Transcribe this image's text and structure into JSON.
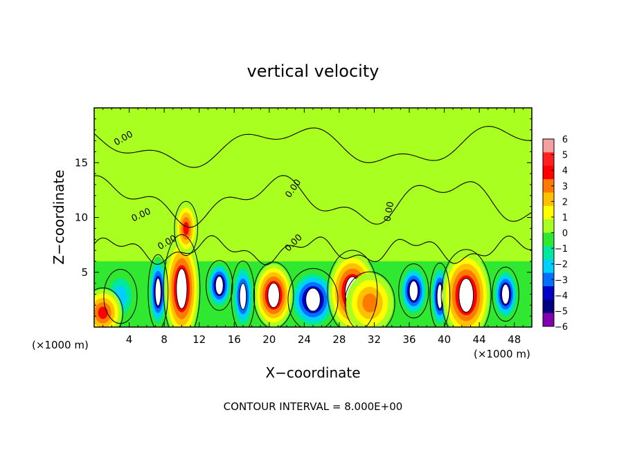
{
  "chart_data": {
    "type": "heatmap",
    "title": "vertical velocity",
    "xlabel": "X−coordinate",
    "ylabel": "Z−coordinate",
    "x_unit_label": "(×1000 m)",
    "y_unit_label": "(×1000 m)",
    "xlim": [
      0,
      50
    ],
    "ylim": [
      0,
      20
    ],
    "xticks": [
      4,
      8,
      12,
      16,
      20,
      24,
      28,
      32,
      36,
      40,
      44,
      48
    ],
    "yticks": [
      5,
      10,
      15
    ],
    "footer": "CONTOUR INTERVAL = 8.000E+00",
    "contour_label": "0.00",
    "contour_label_positions": [
      {
        "x": 3.5,
        "z": 17.0,
        "rot": -30
      },
      {
        "x": 5.5,
        "z": 10.0,
        "rot": -25
      },
      {
        "x": 8.5,
        "z": 7.5,
        "rot": -30
      },
      {
        "x": 23.0,
        "z": 12.5,
        "rot": -55
      },
      {
        "x": 23.0,
        "z": 7.5,
        "rot": -45
      },
      {
        "x": 34.0,
        "z": 10.5,
        "rot": -80
      }
    ],
    "colorbar": {
      "min": -6,
      "max": 6,
      "ticks": [
        "6",
        "5",
        "4",
        "3",
        "2",
        "1",
        "0",
        "−1",
        "−2",
        "−3",
        "−4",
        "−5",
        "−6"
      ],
      "colors": [
        "#f5a0a0",
        "#ff2020",
        "#ff0000",
        "#ff7a00",
        "#ffc000",
        "#ffff00",
        "#a8ff20",
        "#30e830",
        "#00e8a0",
        "#00d0ff",
        "#0070ff",
        "#0000c8",
        "#000080",
        "#8000b0"
      ]
    },
    "updrafts": [
      {
        "x": 1.0,
        "z": 1.3,
        "w": 1.2,
        "h": 1.2,
        "peak": 3.5
      },
      {
        "x": 10.0,
        "z": 3.5,
        "w": 1.1,
        "h": 2.6,
        "peak": 6
      },
      {
        "x": 10.5,
        "z": 9.0,
        "w": 0.7,
        "h": 1.3,
        "peak": 4
      },
      {
        "x": 20.5,
        "z": 2.9,
        "w": 1.2,
        "h": 1.6,
        "peak": 6
      },
      {
        "x": 29.5,
        "z": 3.2,
        "w": 1.5,
        "h": 2.0,
        "peak": 5.5
      },
      {
        "x": 31.5,
        "z": 2.2,
        "w": 1.5,
        "h": 1.5,
        "peak": 3
      },
      {
        "x": 42.5,
        "z": 2.9,
        "w": 1.5,
        "h": 2.2,
        "peak": 6
      }
    ],
    "downdrafts": [
      {
        "x": 3.0,
        "z": 2.8,
        "w": 1.0,
        "h": 1.3,
        "peak": -2
      },
      {
        "x": 7.3,
        "z": 3.2,
        "w": 0.6,
        "h": 1.8,
        "peak": -5.5
      },
      {
        "x": 14.3,
        "z": 3.8,
        "w": 0.8,
        "h": 1.2,
        "peak": -6
      },
      {
        "x": 17.0,
        "z": 2.8,
        "w": 0.7,
        "h": 1.7,
        "peak": -5
      },
      {
        "x": 25.0,
        "z": 2.5,
        "w": 1.5,
        "h": 1.5,
        "peak": -5.5
      },
      {
        "x": 36.5,
        "z": 3.3,
        "w": 0.9,
        "h": 1.3,
        "peak": -6
      },
      {
        "x": 39.5,
        "z": 2.8,
        "w": 0.6,
        "h": 1.6,
        "peak": -5.5
      },
      {
        "x": 47.0,
        "z": 3.0,
        "w": 0.8,
        "h": 1.3,
        "peak": -6
      }
    ]
  }
}
